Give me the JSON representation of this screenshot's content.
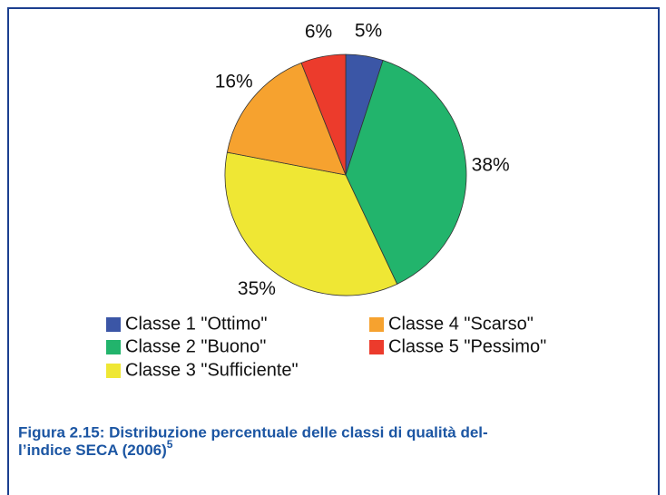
{
  "chart_data": {
    "type": "pie",
    "categories": [
      "Classe 1 \"Ottimo\"",
      "Classe 2 \"Buono\"",
      "Classe 3 \"Sufficiente\"",
      "Classe 4 \"Scarso\"",
      "Classe 5 \"Pessimo\""
    ],
    "values": [
      5,
      38,
      35,
      16,
      6
    ],
    "value_labels": [
      "5%",
      "38%",
      "35%",
      "16%",
      "6%"
    ],
    "colors": [
      "#3b56a6",
      "#22b46c",
      "#efe734",
      "#f6a22f",
      "#ec3b2c"
    ],
    "caption": [
      "Figura 2.15: Distribuzione percentuale delle classi di qualità del-",
      "l’indice SECA (2006)"
    ],
    "caption_note": "5"
  }
}
